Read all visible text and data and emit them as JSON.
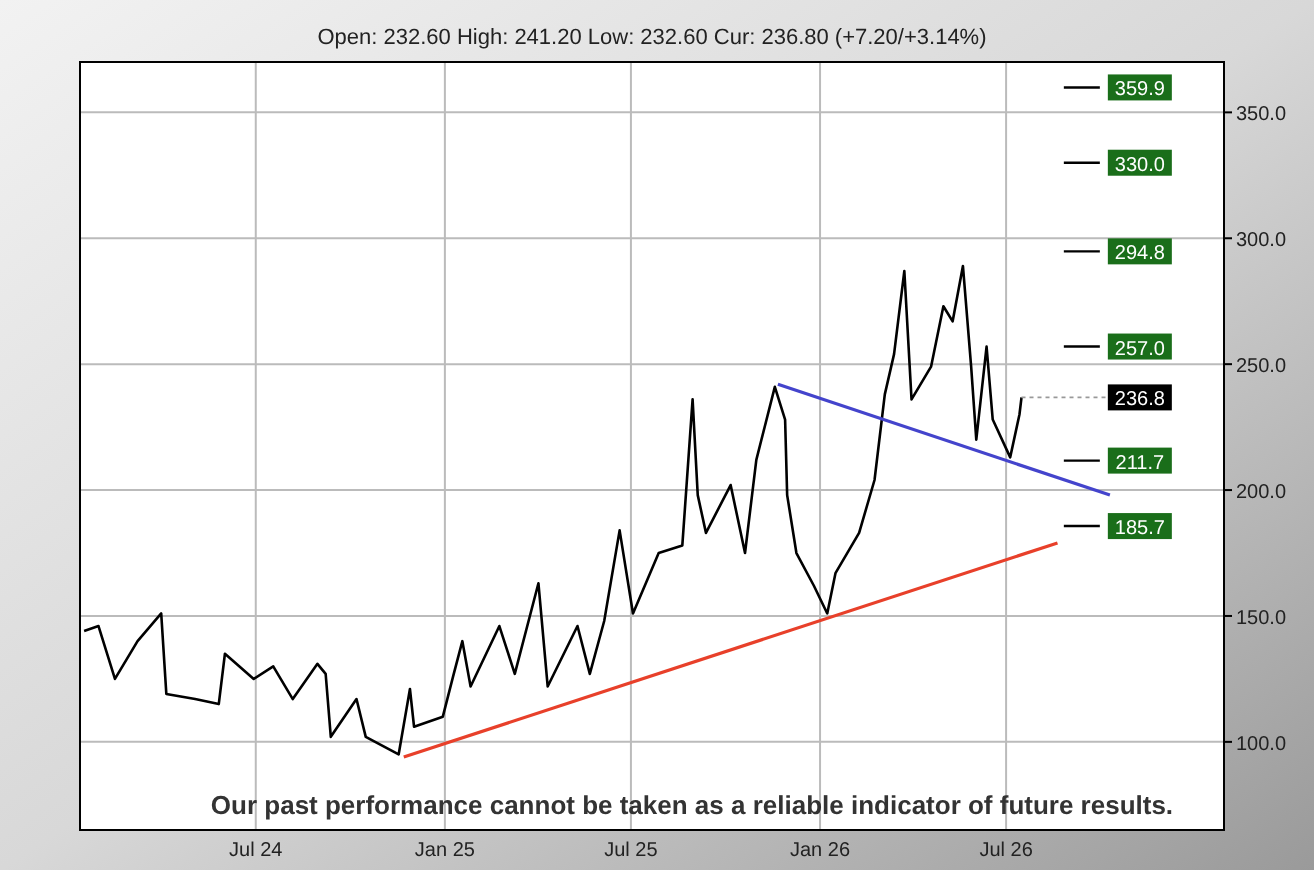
{
  "chart_data": {
    "type": "line",
    "subtitle": "Open: 232.60 High: 241.20 Low: 232.60 Cur: 236.80 (+7.20/+3.14%)",
    "annotations": [
      "Our past performance cannot be taken as a reliable indicator of future results.",
      {
        "text": "236.8",
        "x": "2026-07-16",
        "y": 236.8
      }
    ],
    "xlim": [
      "2024-01-12",
      "2027-01-29"
    ],
    "xticks": [
      {
        "value": "2024-07-01",
        "label": "Jul 24"
      },
      {
        "value": "2025-01-01",
        "label": "Jan 25"
      },
      {
        "value": "2025-07-01",
        "label": "Jul 25"
      },
      {
        "value": "2026-01-01",
        "label": "Jan 26"
      },
      {
        "value": "2026-07-01",
        "label": "Jul 26"
      }
    ],
    "ylim": [
      65,
      370
    ],
    "yticks": [
      {
        "value": 100,
        "label": "100.0"
      },
      {
        "value": 150,
        "label": "150.0"
      },
      {
        "value": 200,
        "label": "200.0"
      },
      {
        "value": 250,
        "label": "250.0"
      },
      {
        "value": 300,
        "label": "300.0"
      },
      {
        "value": 350,
        "label": "350.0"
      }
    ],
    "grid": true,
    "line_style": "solid",
    "marker": "none",
    "series": [
      {
        "color": "#000000",
        "x": [
          "2024-01-16",
          "2024-01-30",
          "2024-02-15",
          "2024-03-08",
          "2024-03-31",
          "2024-04-05",
          "2024-05-03",
          "2024-05-26",
          "2024-06-01",
          "2024-06-29",
          "2024-07-18",
          "2024-08-06",
          "2024-08-30",
          "2024-09-07",
          "2024-09-12",
          "2024-10-07",
          "2024-10-16",
          "2024-11-17",
          "2024-11-28",
          "2024-12-02",
          "2024-12-30",
          "2025-01-09",
          "2025-01-18",
          "2025-01-26",
          "2025-02-23",
          "2025-03-10",
          "2025-04-02",
          "2025-04-11",
          "2025-05-10",
          "2025-05-22",
          "2025-06-05",
          "2025-06-20",
          "2025-07-03",
          "2025-07-28",
          "2025-08-20",
          "2025-08-30",
          "2025-09-04",
          "2025-09-12",
          "2025-10-06",
          "2025-10-20",
          "2025-10-31",
          "2025-11-18",
          "2025-11-28",
          "2025-11-30",
          "2025-12-09",
          "2025-12-26",
          "2026-01-08",
          "2026-01-16",
          "2026-02-08",
          "2026-02-23",
          "2026-03-05",
          "2026-03-14",
          "2026-03-24",
          "2026-03-31",
          "2026-04-19",
          "2026-05-01",
          "2026-05-10",
          "2026-05-20",
          "2026-05-28",
          "2026-06-02",
          "2026-06-12",
          "2026-06-18",
          "2026-07-05",
          "2026-07-14",
          "2026-07-16"
        ],
        "values": [
          144,
          146,
          125,
          140,
          151,
          119,
          117,
          115,
          135,
          125,
          130,
          117,
          131,
          127,
          102,
          117,
          102,
          95,
          121,
          106,
          110,
          126,
          140,
          122,
          146,
          127,
          163,
          122,
          146,
          127,
          148,
          184,
          151,
          175,
          178,
          236,
          198,
          183,
          202,
          175,
          212,
          241,
          228,
          198,
          175,
          162,
          151,
          167,
          183,
          204,
          238,
          254,
          287,
          236,
          249,
          273,
          267,
          289,
          249,
          220,
          257,
          228,
          213,
          230,
          236.8
        ]
      },
      {
        "color": "#e8402a",
        "x": [
          "2024-11-22",
          "2026-08-20"
        ],
        "values": [
          94,
          179
        ]
      },
      {
        "color": "#4444cc",
        "x": [
          "2025-11-21",
          "2026-10-10"
        ],
        "values": [
          242,
          198
        ]
      }
    ],
    "ref_lines": [
      {
        "axis": "y",
        "value": 359.9,
        "label": "359.9",
        "color": "#000000"
      },
      {
        "axis": "y",
        "value": 330.0,
        "label": "330.0",
        "color": "#000000"
      },
      {
        "axis": "y",
        "value": 294.8,
        "label": "294.8",
        "color": "#000000"
      },
      {
        "axis": "y",
        "value": 257.0,
        "label": "257.0",
        "color": "#000000"
      },
      {
        "axis": "y",
        "value": 211.7,
        "label": "211.7",
        "color": "#000000"
      },
      {
        "axis": "y",
        "value": 185.7,
        "label": "185.7",
        "color": "#000000"
      }
    ]
  }
}
